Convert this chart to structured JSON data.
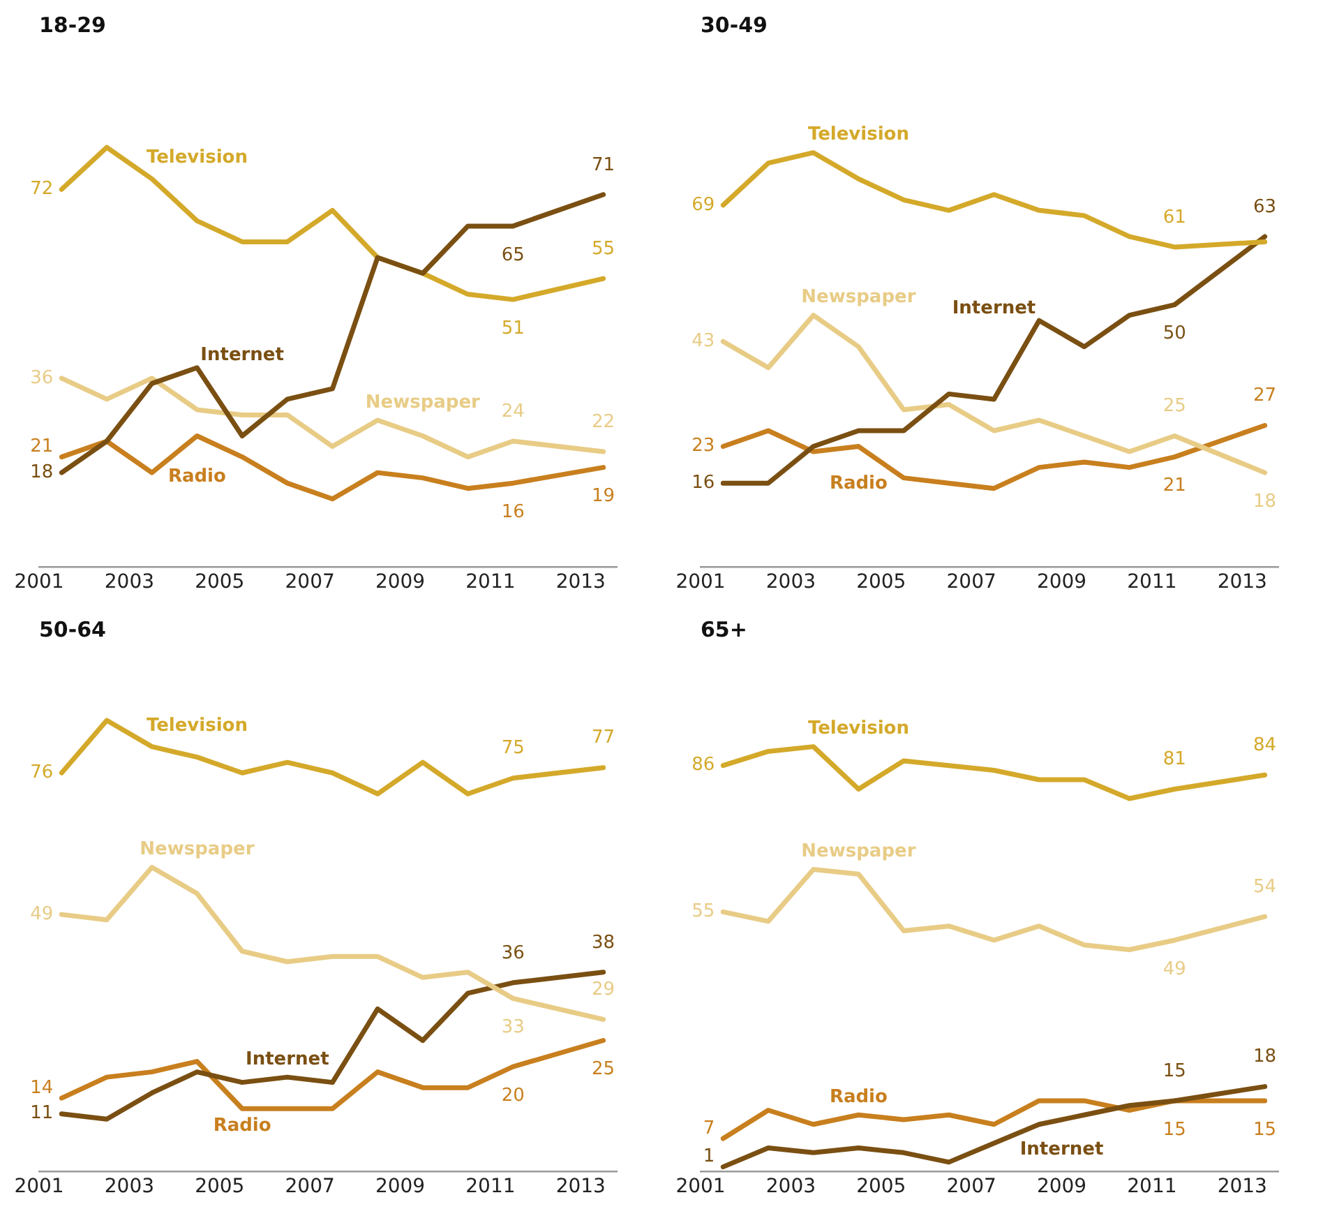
{
  "chart_data": [
    {
      "type": "line",
      "title": "18-29",
      "x": [
        2001.5,
        2002.5,
        2003.5,
        2004.5,
        2005.5,
        2006.5,
        2007.5,
        2008.5,
        2009.5,
        2010.5,
        2011.5,
        2013.5
      ],
      "xlim": [
        2001,
        2013.8
      ],
      "xticks": [
        2001,
        2003,
        2005,
        2007,
        2009,
        2011,
        2013
      ],
      "tick_labels": "x",
      "marker": "none",
      "series": [
        {
          "name": "Internet",
          "color": "#7a4f12",
          "values": [
            18,
            24,
            35,
            38,
            25,
            32,
            34,
            59,
            56,
            65,
            65,
            71
          ],
          "value_labels": [
            "18",
            null,
            null,
            null,
            null,
            null,
            null,
            null,
            null,
            null,
            "65",
            "71"
          ]
        },
        {
          "name": "Television",
          "color": "#d4a92a",
          "values": [
            72,
            80,
            74,
            66,
            62,
            62,
            68,
            59,
            56,
            52,
            51,
            55
          ],
          "value_labels": [
            "72",
            null,
            null,
            null,
            null,
            null,
            null,
            null,
            null,
            null,
            "51",
            "55"
          ]
        },
        {
          "name": "Newspaper",
          "color": "#e8cc86",
          "values": [
            36,
            32,
            36,
            30,
            29,
            29,
            23,
            28,
            25,
            21,
            24,
            22
          ],
          "value_labels": [
            "36",
            null,
            null,
            null,
            null,
            null,
            null,
            null,
            null,
            null,
            "24",
            "22"
          ]
        },
        {
          "name": "Radio",
          "color": "#c87f1e",
          "values": [
            21,
            24,
            18,
            25,
            21,
            16,
            13,
            18,
            17,
            15,
            16,
            19
          ],
          "value_labels": [
            "21",
            null,
            null,
            null,
            null,
            null,
            null,
            null,
            null,
            null,
            "16",
            "19"
          ]
        }
      ]
    },
    {
      "type": "line",
      "title": "30-49",
      "x": [
        2001.5,
        2002.5,
        2003.5,
        2004.5,
        2005.5,
        2006.5,
        2007.5,
        2008.5,
        2009.5,
        2010.5,
        2011.5,
        2013.5
      ],
      "xlim": [
        2001,
        2013.8
      ],
      "xticks": [
        2001,
        2003,
        2005,
        2007,
        2009,
        2011,
        2013
      ],
      "tick_labels": "x",
      "marker": "none",
      "series": [
        {
          "name": "Television",
          "color": "#d4a92a",
          "values": [
            69,
            77,
            79,
            74,
            70,
            68,
            71,
            68,
            67,
            63,
            61,
            62
          ],
          "value_labels": [
            "69",
            null,
            null,
            null,
            null,
            null,
            null,
            null,
            null,
            null,
            "61",
            null
          ]
        },
        {
          "name": "Internet",
          "color": "#7a4f12",
          "values": [
            16,
            16,
            23,
            26,
            26,
            33,
            32,
            47,
            42,
            48,
            50,
            63
          ],
          "value_labels": [
            "16",
            null,
            null,
            null,
            null,
            null,
            null,
            null,
            null,
            null,
            "50",
            "63"
          ]
        },
        {
          "name": "Newspaper",
          "color": "#e8cc86",
          "values": [
            43,
            38,
            48,
            42,
            30,
            31,
            26,
            28,
            25,
            22,
            25,
            18
          ],
          "value_labels": [
            "43",
            null,
            null,
            null,
            null,
            null,
            null,
            null,
            null,
            null,
            "25",
            "18"
          ]
        },
        {
          "name": "Radio",
          "color": "#c87f1e",
          "values": [
            23,
            26,
            22,
            23,
            17,
            16,
            15,
            19,
            20,
            19,
            21,
            27
          ],
          "value_labels": [
            "23",
            null,
            null,
            null,
            null,
            null,
            null,
            null,
            null,
            null,
            "21",
            "27"
          ]
        }
      ]
    },
    {
      "type": "line",
      "title": "50-64",
      "x": [
        2001.5,
        2002.5,
        2003.5,
        2004.5,
        2005.5,
        2006.5,
        2007.5,
        2008.5,
        2009.5,
        2010.5,
        2011.5,
        2013.5
      ],
      "xlim": [
        2001,
        2013.8
      ],
      "xticks": [
        2001,
        2003,
        2005,
        2007,
        2009,
        2011,
        2013
      ],
      "tick_labels": "x",
      "marker": "none",
      "series": [
        {
          "name": "Television",
          "color": "#d4a92a",
          "values": [
            76,
            86,
            81,
            79,
            76,
            78,
            76,
            72,
            78,
            72,
            75,
            77
          ],
          "value_labels": [
            "76",
            null,
            null,
            null,
            null,
            null,
            null,
            null,
            null,
            null,
            "75",
            "77"
          ]
        },
        {
          "name": "Newspaper",
          "color": "#e8cc86",
          "values": [
            49,
            48,
            58,
            53,
            42,
            40,
            41,
            41,
            37,
            38,
            33,
            29
          ],
          "value_labels": [
            "49",
            null,
            null,
            null,
            null,
            null,
            null,
            null,
            null,
            null,
            "33",
            "29"
          ]
        },
        {
          "name": "Internet",
          "color": "#7a4f12",
          "values": [
            11,
            10,
            15,
            19,
            17,
            18,
            17,
            31,
            25,
            34,
            36,
            38
          ],
          "value_labels": [
            "11",
            null,
            null,
            null,
            null,
            null,
            null,
            null,
            null,
            null,
            "36",
            "38"
          ]
        },
        {
          "name": "Radio",
          "color": "#c87f1e",
          "values": [
            14,
            18,
            19,
            21,
            12,
            12,
            12,
            19,
            16,
            16,
            20,
            25
          ],
          "value_labels": [
            "14",
            null,
            null,
            null,
            null,
            null,
            null,
            null,
            null,
            null,
            "20",
            "25"
          ]
        }
      ]
    },
    {
      "type": "line",
      "title": "65+",
      "x": [
        2001.5,
        2002.5,
        2003.5,
        2004.5,
        2005.5,
        2006.5,
        2007.5,
        2008.5,
        2009.5,
        2010.5,
        2011.5,
        2013.5
      ],
      "xlim": [
        2001,
        2013.8
      ],
      "xticks": [
        2001,
        2003,
        2005,
        2007,
        2009,
        2011,
        2013
      ],
      "tick_labels": "x",
      "marker": "none",
      "series": [
        {
          "name": "Television",
          "color": "#d4a92a",
          "values": [
            86,
            89,
            90,
            81,
            87,
            86,
            85,
            83,
            83,
            79,
            81,
            84
          ],
          "value_labels": [
            "86",
            null,
            null,
            null,
            null,
            null,
            null,
            null,
            null,
            null,
            "81",
            "84"
          ]
        },
        {
          "name": "Newspaper",
          "color": "#e8cc86",
          "values": [
            55,
            53,
            64,
            63,
            51,
            52,
            49,
            52,
            48,
            47,
            49,
            54
          ],
          "value_labels": [
            "55",
            null,
            null,
            null,
            null,
            null,
            null,
            null,
            null,
            null,
            "49",
            "54"
          ]
        },
        {
          "name": "Internet",
          "color": "#7a4f12",
          "values": [
            1,
            5,
            4,
            5,
            4,
            2,
            6,
            10,
            12,
            14,
            15,
            18
          ],
          "value_labels": [
            "1",
            null,
            null,
            null,
            null,
            null,
            null,
            null,
            null,
            null,
            "15",
            "18"
          ]
        },
        {
          "name": "Radio",
          "color": "#c87f1e",
          "values": [
            7,
            13,
            10,
            12,
            11,
            12,
            10,
            15,
            15,
            13,
            15,
            15
          ],
          "value_labels": [
            "7",
            null,
            null,
            null,
            null,
            null,
            null,
            null,
            null,
            null,
            "15",
            "15"
          ]
        }
      ]
    }
  ]
}
